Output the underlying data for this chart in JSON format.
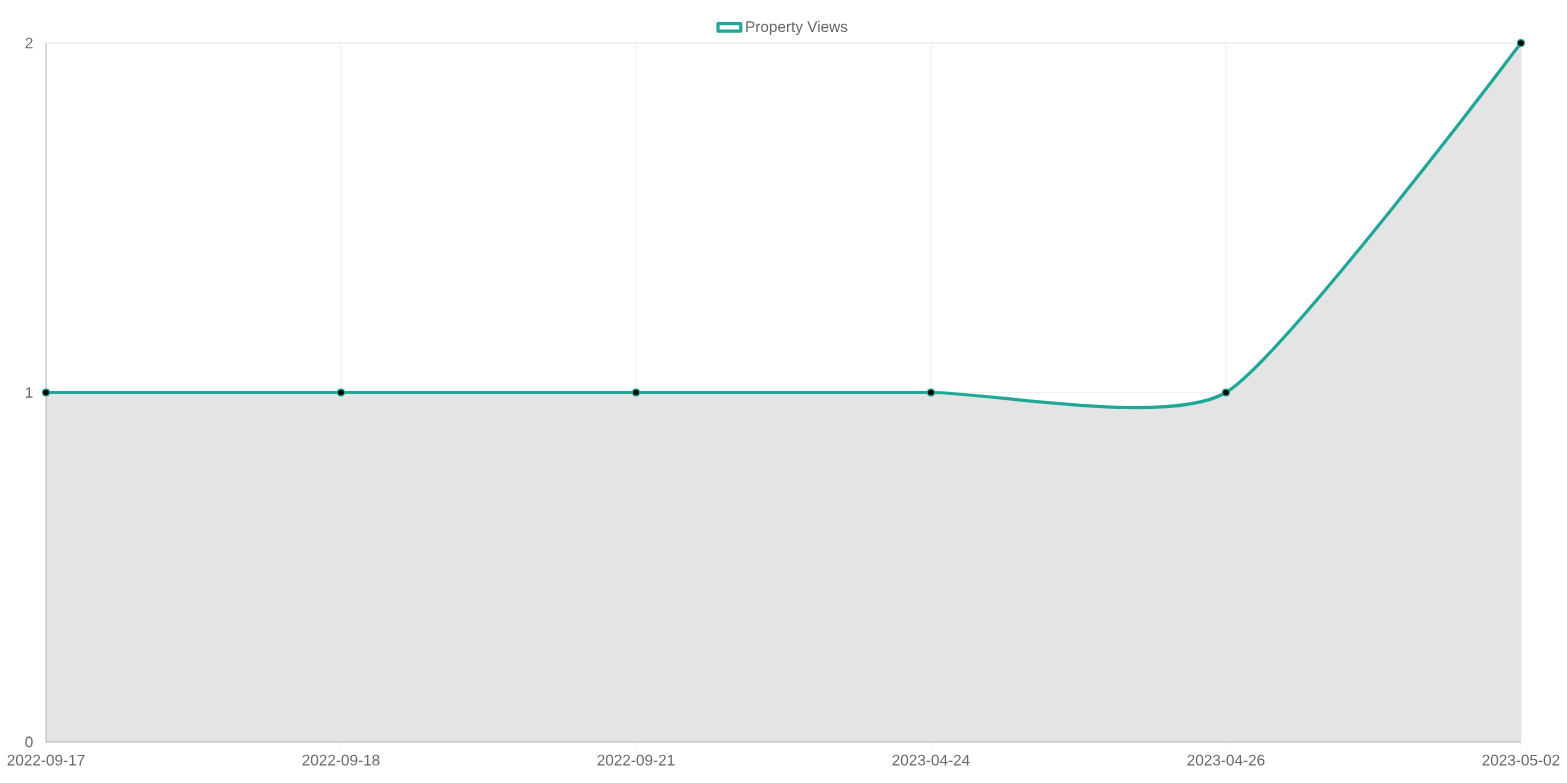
{
  "chart_data": {
    "type": "area",
    "categories": [
      "2022-09-17",
      "2022-09-18",
      "2022-09-21",
      "2023-04-24",
      "2023-04-26",
      "2023-05-02"
    ],
    "series": [
      {
        "name": "Property Views",
        "color": "#1fa898",
        "values": [
          1,
          1,
          1,
          1,
          1,
          2
        ]
      }
    ],
    "ylim": [
      0,
      2
    ],
    "yticks": [
      0,
      1,
      2
    ],
    "grid": true,
    "legend": "top",
    "marker": "circle",
    "line_style": "solid"
  }
}
